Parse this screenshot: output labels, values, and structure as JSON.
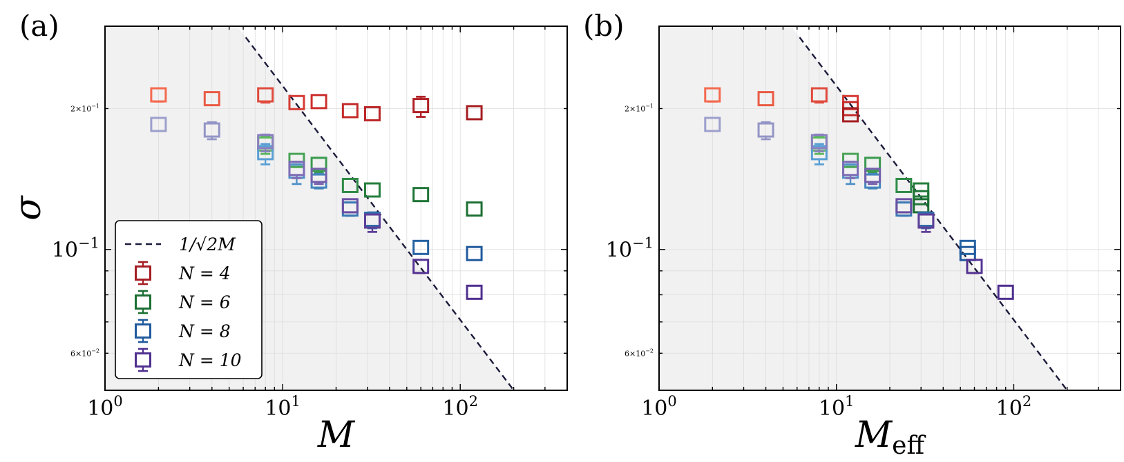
{
  "chart_data": [
    {
      "type": "scatter",
      "panel_label": "(a)",
      "xlabel": "M",
      "xlabel_sub": "",
      "ylabel": "σ",
      "xscale": "log",
      "yscale": "log",
      "xlim": [
        1,
        400
      ],
      "ylim": [
        0.05,
        0.3
      ],
      "grid": true,
      "x_ticks": [
        {
          "base": "10",
          "exp": "0"
        },
        {
          "base": "10",
          "exp": "1"
        },
        {
          "base": "10",
          "exp": "2"
        }
      ],
      "y_ticks": [
        {
          "value": 0.1,
          "base": "10",
          "exp": "−1",
          "size": "major"
        },
        {
          "value": 0.2,
          "base": "2×10",
          "exp": "−1",
          "size": "minor"
        },
        {
          "value": 0.06,
          "base": "6×10",
          "exp": "−2",
          "size": "minor"
        }
      ],
      "shaded_region": "below 1/sqrt(2M)",
      "reference_line": {
        "label": "1/√2M",
        "x_range": [
          6.2,
          200
        ]
      },
      "legend": {
        "placement": "lower-left",
        "entries": [
          {
            "label": "1/√2M",
            "kind": "dashed-line",
            "color": "#1a1a3a"
          },
          {
            "label": "N = 4",
            "kind": "box",
            "color": "#a51d22"
          },
          {
            "label": "N = 6",
            "kind": "box",
            "color": "#1b6f32"
          },
          {
            "label": "N = 8",
            "kind": "box",
            "color": "#1f5a9d"
          },
          {
            "label": "N = 10",
            "kind": "box",
            "color": "#4f2f8f"
          }
        ]
      },
      "series": [
        {
          "name": "N = 4",
          "points": [
            {
              "x": 2,
              "y": 0.214,
              "lo": 0.207,
              "hi": 0.22,
              "color": "#f4694e"
            },
            {
              "x": 4,
              "y": 0.21,
              "lo": 0.204,
              "hi": 0.215,
              "color": "#ea5a44"
            },
            {
              "x": 8,
              "y": 0.214,
              "lo": 0.206,
              "hi": 0.22,
              "color": "#e04a3c"
            },
            {
              "x": 12,
              "y": 0.206,
              "lo": 0.203,
              "hi": 0.208,
              "color": "#d63a33"
            },
            {
              "x": 16,
              "y": 0.207,
              "lo": 0.201,
              "hi": 0.212,
              "color": "#cc2f2d"
            },
            {
              "x": 24,
              "y": 0.198,
              "lo": 0.192,
              "hi": 0.203,
              "color": "#c42a2a"
            },
            {
              "x": 32,
              "y": 0.195,
              "lo": 0.192,
              "hi": 0.198,
              "color": "#bc2528"
            },
            {
              "x": 60,
              "y": 0.203,
              "lo": 0.192,
              "hi": 0.212,
              "color": "#b02025"
            },
            {
              "x": 120,
              "y": 0.196,
              "lo": 0.193,
              "hi": 0.198,
              "color": "#a51d22"
            }
          ]
        },
        {
          "name": "N = 6",
          "points": [
            {
              "x": 8,
              "y": 0.168,
              "lo": 0.16,
              "hi": 0.175,
              "color": "#5cb85c"
            },
            {
              "x": 12,
              "y": 0.155,
              "lo": 0.15,
              "hi": 0.16,
              "color": "#48a356"
            },
            {
              "x": 16,
              "y": 0.152,
              "lo": 0.146,
              "hi": 0.157,
              "color": "#3a9a4f"
            },
            {
              "x": 24,
              "y": 0.137,
              "lo": 0.134,
              "hi": 0.14,
              "color": "#2e8b45"
            },
            {
              "x": 32,
              "y": 0.134,
              "lo": 0.131,
              "hi": 0.137,
              "color": "#257e3d"
            },
            {
              "x": 60,
              "y": 0.131,
              "lo": 0.128,
              "hi": 0.134,
              "color": "#1f7537"
            },
            {
              "x": 120,
              "y": 0.122,
              "lo": 0.119,
              "hi": 0.125,
              "color": "#1b6f32"
            }
          ]
        },
        {
          "name": "N = 8",
          "points": [
            {
              "x": 8,
              "y": 0.161,
              "lo": 0.152,
              "hi": 0.168,
              "color": "#5a9fd4"
            },
            {
              "x": 12,
              "y": 0.147,
              "lo": 0.138,
              "hi": 0.152,
              "color": "#4f90c8"
            },
            {
              "x": 16,
              "y": 0.14,
              "lo": 0.135,
              "hi": 0.145,
              "color": "#4485be"
            },
            {
              "x": 24,
              "y": 0.122,
              "lo": 0.118,
              "hi": 0.126,
              "color": "#3a78b4"
            },
            {
              "x": 32,
              "y": 0.116,
              "lo": 0.111,
              "hi": 0.12,
              "color": "#316ca9"
            },
            {
              "x": 60,
              "y": 0.101,
              "lo": 0.098,
              "hi": 0.104,
              "color": "#2562a3"
            },
            {
              "x": 120,
              "y": 0.098,
              "lo": 0.095,
              "hi": 0.101,
              "color": "#1f5a9d"
            }
          ]
        },
        {
          "name": "N = 10",
          "points": [
            {
              "x": 2,
              "y": 0.185,
              "lo": 0.18,
              "hi": 0.19,
              "color": "#9c9fcc"
            },
            {
              "x": 4,
              "y": 0.18,
              "lo": 0.172,
              "hi": 0.187,
              "color": "#9495c6"
            },
            {
              "x": 8,
              "y": 0.17,
              "lo": 0.162,
              "hi": 0.176,
              "color": "#8a80c0"
            },
            {
              "x": 12,
              "y": 0.149,
              "lo": 0.142,
              "hi": 0.154,
              "color": "#7f6db6"
            },
            {
              "x": 16,
              "y": 0.144,
              "lo": 0.138,
              "hi": 0.148,
              "color": "#7560ad"
            },
            {
              "x": 24,
              "y": 0.124,
              "lo": 0.12,
              "hi": 0.128,
              "color": "#6a4fa3"
            },
            {
              "x": 32,
              "y": 0.115,
              "lo": 0.109,
              "hi": 0.118,
              "color": "#5f3f99"
            },
            {
              "x": 60,
              "y": 0.092,
              "lo": 0.089,
              "hi": 0.095,
              "color": "#553493"
            },
            {
              "x": 120,
              "y": 0.081,
              "lo": 0.079,
              "hi": 0.083,
              "color": "#4f2f8f"
            }
          ]
        }
      ]
    },
    {
      "type": "scatter",
      "panel_label": "(b)",
      "xlabel": "M",
      "xlabel_sub": "eff",
      "ylabel": "",
      "xscale": "log",
      "yscale": "log",
      "xlim": [
        1,
        400
      ],
      "ylim": [
        0.05,
        0.3
      ],
      "grid": true,
      "x_ticks": [
        {
          "base": "10",
          "exp": "0"
        },
        {
          "base": "10",
          "exp": "1"
        },
        {
          "base": "10",
          "exp": "2"
        }
      ],
      "y_ticks": [
        {
          "value": 0.1,
          "base": "10",
          "exp": "−1",
          "size": "major"
        },
        {
          "value": 0.2,
          "base": "2×10",
          "exp": "−1",
          "size": "minor"
        },
        {
          "value": 0.06,
          "base": "6×10",
          "exp": "−2",
          "size": "minor"
        }
      ],
      "shaded_region": "below 1/sqrt(2M)",
      "reference_line": {
        "label": "1/√2M",
        "x_range": [
          6.2,
          200
        ]
      },
      "series": [
        {
          "name": "N = 4",
          "points": [
            {
              "x": 2,
              "y": 0.214,
              "lo": 0.207,
              "hi": 0.22,
              "color": "#f4694e"
            },
            {
              "x": 4,
              "y": 0.21,
              "lo": 0.204,
              "hi": 0.215,
              "color": "#ea5a44"
            },
            {
              "x": 8,
              "y": 0.214,
              "lo": 0.206,
              "hi": 0.22,
              "color": "#e04a3c"
            },
            {
              "x": 12,
              "y": 0.206,
              "lo": 0.203,
              "hi": 0.208,
              "color": "#d63a33"
            },
            {
              "x": 12,
              "y": 0.2,
              "lo": 0.197,
              "hi": 0.203,
              "color": "#c42a2a"
            },
            {
              "x": 12,
              "y": 0.194,
              "lo": 0.19,
              "hi": 0.197,
              "color": "#a51d22"
            }
          ]
        },
        {
          "name": "N = 6",
          "points": [
            {
              "x": 8,
              "y": 0.168,
              "lo": 0.16,
              "hi": 0.175,
              "color": "#5cb85c"
            },
            {
              "x": 12,
              "y": 0.155,
              "lo": 0.15,
              "hi": 0.16,
              "color": "#48a356"
            },
            {
              "x": 16,
              "y": 0.152,
              "lo": 0.146,
              "hi": 0.157,
              "color": "#3a9a4f"
            },
            {
              "x": 24,
              "y": 0.137,
              "lo": 0.134,
              "hi": 0.14,
              "color": "#2e8b45"
            },
            {
              "x": 30,
              "y": 0.134,
              "lo": 0.131,
              "hi": 0.137,
              "color": "#257e3d"
            },
            {
              "x": 30,
              "y": 0.129,
              "lo": 0.126,
              "hi": 0.132,
              "color": "#1f7537"
            },
            {
              "x": 30,
              "y": 0.124,
              "lo": 0.121,
              "hi": 0.127,
              "color": "#1b6f32"
            }
          ]
        },
        {
          "name": "N = 8",
          "points": [
            {
              "x": 8,
              "y": 0.161,
              "lo": 0.152,
              "hi": 0.168,
              "color": "#5a9fd4"
            },
            {
              "x": 12,
              "y": 0.147,
              "lo": 0.138,
              "hi": 0.152,
              "color": "#4f90c8"
            },
            {
              "x": 16,
              "y": 0.14,
              "lo": 0.135,
              "hi": 0.145,
              "color": "#4485be"
            },
            {
              "x": 24,
              "y": 0.122,
              "lo": 0.118,
              "hi": 0.126,
              "color": "#3a78b4"
            },
            {
              "x": 32,
              "y": 0.116,
              "lo": 0.111,
              "hi": 0.12,
              "color": "#316ca9"
            },
            {
              "x": 55,
              "y": 0.101,
              "lo": 0.098,
              "hi": 0.104,
              "color": "#2562a3"
            },
            {
              "x": 55,
              "y": 0.098,
              "lo": 0.095,
              "hi": 0.101,
              "color": "#1f5a9d"
            }
          ]
        },
        {
          "name": "N = 10",
          "points": [
            {
              "x": 2,
              "y": 0.185,
              "lo": 0.18,
              "hi": 0.19,
              "color": "#9c9fcc"
            },
            {
              "x": 4,
              "y": 0.18,
              "lo": 0.172,
              "hi": 0.187,
              "color": "#9495c6"
            },
            {
              "x": 8,
              "y": 0.17,
              "lo": 0.162,
              "hi": 0.176,
              "color": "#8a80c0"
            },
            {
              "x": 12,
              "y": 0.149,
              "lo": 0.142,
              "hi": 0.154,
              "color": "#7f6db6"
            },
            {
              "x": 16,
              "y": 0.144,
              "lo": 0.138,
              "hi": 0.148,
              "color": "#7560ad"
            },
            {
              "x": 24,
              "y": 0.124,
              "lo": 0.12,
              "hi": 0.128,
              "color": "#6a4fa3"
            },
            {
              "x": 32,
              "y": 0.115,
              "lo": 0.109,
              "hi": 0.118,
              "color": "#5f3f99"
            },
            {
              "x": 60,
              "y": 0.092,
              "lo": 0.089,
              "hi": 0.095,
              "color": "#553493"
            },
            {
              "x": 90,
              "y": 0.081,
              "lo": 0.079,
              "hi": 0.083,
              "color": "#4f2f8f"
            }
          ]
        }
      ]
    }
  ]
}
